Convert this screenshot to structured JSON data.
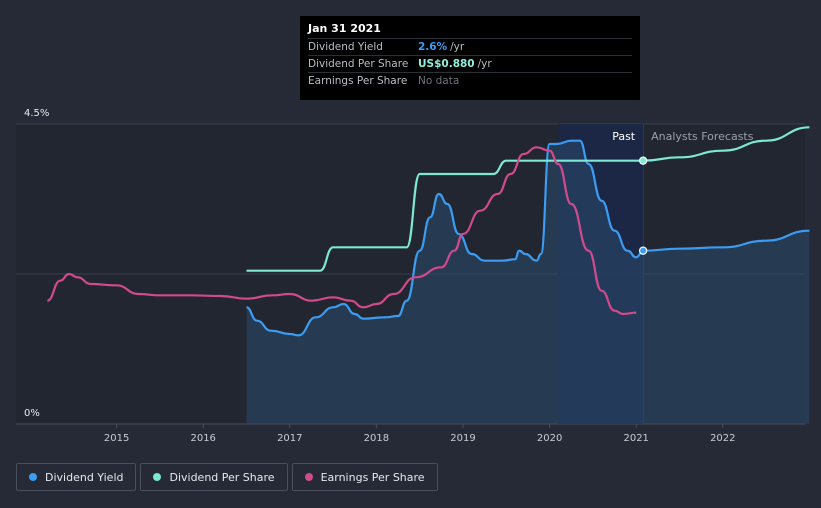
{
  "tooltip": {
    "date": "Jan 31 2021",
    "rows": [
      {
        "name": "Dividend Yield",
        "value": "2.6%",
        "unit": "/yr",
        "color": "#3b9cf2"
      },
      {
        "name": "Dividend Per Share",
        "value": "US$0.880",
        "unit": "/yr",
        "color": "#8ff0dc"
      },
      {
        "name": "Earnings Per Share",
        "value": "No data",
        "unit": "",
        "color": "#6f737c"
      }
    ]
  },
  "labels": {
    "past": "Past",
    "forecast": "Analysts Forecasts"
  },
  "legend": [
    {
      "label": "Dividend Yield",
      "color": "#3b9cf2"
    },
    {
      "label": "Dividend Per Share",
      "color": "#7de8d4"
    },
    {
      "label": "Earnings Per Share",
      "color": "#d04a8c"
    }
  ],
  "chart_data": {
    "type": "line",
    "ylim": [
      0,
      4.5
    ],
    "yticks": [
      "0%",
      "4.5%"
    ],
    "xticks": [
      "2015",
      "2016",
      "2017",
      "2018",
      "2019",
      "2020",
      "2021",
      "2022"
    ],
    "xlim": [
      2014.2,
      2023.0
    ],
    "highlight_date": 2021.08,
    "series": [
      {
        "name": "Dividend Yield",
        "color": "#3b9cf2",
        "fill": true,
        "points": [
          [
            2016.5,
            1.75
          ],
          [
            2016.62,
            1.55
          ],
          [
            2016.78,
            1.4
          ],
          [
            2017.0,
            1.35
          ],
          [
            2017.1,
            1.33
          ],
          [
            2017.3,
            1.6
          ],
          [
            2017.5,
            1.75
          ],
          [
            2017.62,
            1.8
          ],
          [
            2017.75,
            1.65
          ],
          [
            2017.85,
            1.58
          ],
          [
            2018.1,
            1.6
          ],
          [
            2018.25,
            1.62
          ],
          [
            2018.35,
            1.85
          ],
          [
            2018.5,
            2.6
          ],
          [
            2018.62,
            3.1
          ],
          [
            2018.72,
            3.45
          ],
          [
            2018.82,
            3.3
          ],
          [
            2018.95,
            2.85
          ],
          [
            2019.1,
            2.55
          ],
          [
            2019.25,
            2.45
          ],
          [
            2019.45,
            2.45
          ],
          [
            2019.6,
            2.47
          ],
          [
            2019.65,
            2.6
          ],
          [
            2019.72,
            2.55
          ],
          [
            2019.85,
            2.45
          ],
          [
            2019.9,
            2.55
          ],
          [
            2020.0,
            4.2
          ],
          [
            2020.08,
            4.2
          ],
          [
            2020.25,
            4.25
          ],
          [
            2020.35,
            4.25
          ],
          [
            2020.45,
            3.9
          ],
          [
            2020.6,
            3.35
          ],
          [
            2020.75,
            2.9
          ],
          [
            2020.9,
            2.6
          ],
          [
            2021.0,
            2.5
          ],
          [
            2021.08,
            2.6
          ],
          [
            2021.5,
            2.63
          ],
          [
            2022.0,
            2.65
          ],
          [
            2022.5,
            2.75
          ],
          [
            2023.0,
            2.9
          ]
        ]
      },
      {
        "name": "Dividend Per Share",
        "color": "#7de8d4",
        "fill": false,
        "points": [
          [
            2016.5,
            2.3
          ],
          [
            2017.35,
            2.3
          ],
          [
            2017.5,
            2.65
          ],
          [
            2018.35,
            2.65
          ],
          [
            2018.5,
            3.75
          ],
          [
            2019.35,
            3.75
          ],
          [
            2019.5,
            3.95
          ],
          [
            2021.08,
            3.95
          ],
          [
            2021.5,
            4.0
          ],
          [
            2022.0,
            4.1
          ],
          [
            2022.5,
            4.25
          ],
          [
            2023.0,
            4.45
          ]
        ]
      },
      {
        "name": "Earnings Per Share",
        "color": "#d04a8c",
        "fill": false,
        "points": [
          [
            2014.2,
            1.85
          ],
          [
            2014.35,
            2.15
          ],
          [
            2014.45,
            2.25
          ],
          [
            2014.55,
            2.2
          ],
          [
            2014.7,
            2.1
          ],
          [
            2015.0,
            2.08
          ],
          [
            2015.25,
            1.95
          ],
          [
            2015.5,
            1.93
          ],
          [
            2015.85,
            1.93
          ],
          [
            2016.2,
            1.92
          ],
          [
            2016.5,
            1.88
          ],
          [
            2016.8,
            1.93
          ],
          [
            2017.0,
            1.95
          ],
          [
            2017.25,
            1.85
          ],
          [
            2017.5,
            1.9
          ],
          [
            2017.7,
            1.85
          ],
          [
            2017.85,
            1.75
          ],
          [
            2018.0,
            1.8
          ],
          [
            2018.2,
            1.95
          ],
          [
            2018.45,
            2.2
          ],
          [
            2018.75,
            2.35
          ],
          [
            2018.9,
            2.6
          ],
          [
            2019.0,
            2.85
          ],
          [
            2019.2,
            3.2
          ],
          [
            2019.4,
            3.45
          ],
          [
            2019.55,
            3.75
          ],
          [
            2019.7,
            4.05
          ],
          [
            2019.85,
            4.15
          ],
          [
            2020.0,
            4.1
          ],
          [
            2020.1,
            3.9
          ],
          [
            2020.25,
            3.3
          ],
          [
            2020.45,
            2.6
          ],
          [
            2020.6,
            2.0
          ],
          [
            2020.75,
            1.7
          ],
          [
            2020.85,
            1.65
          ],
          [
            2021.0,
            1.67
          ]
        ]
      }
    ]
  }
}
